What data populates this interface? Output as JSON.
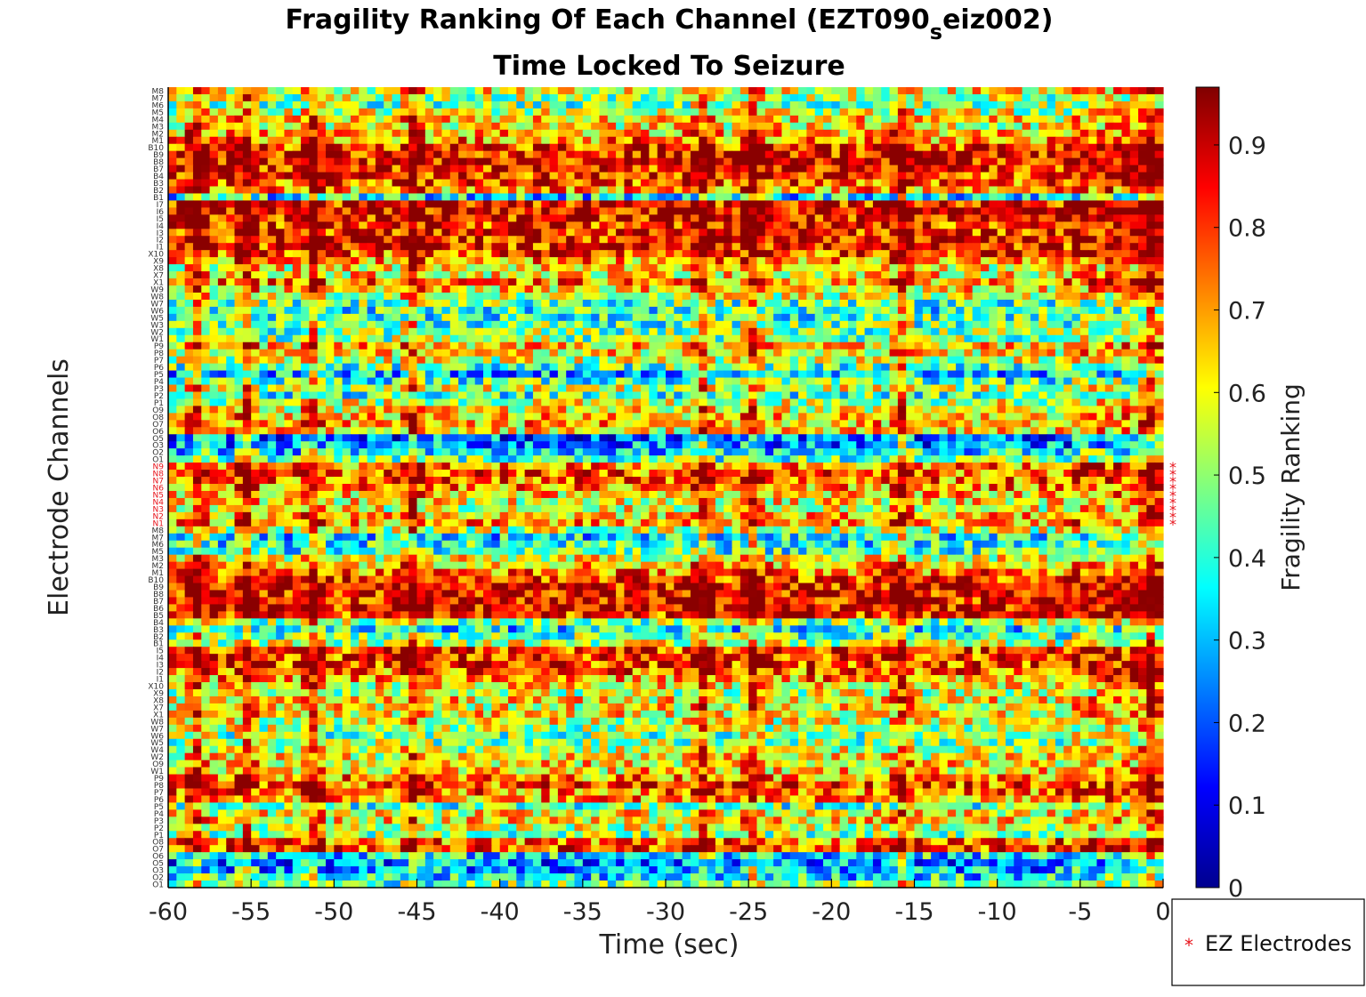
{
  "chart_data": {
    "type": "heatmap",
    "title_main": "Fragility Ranking Of Each Channel (EZT090",
    "title_sub": "s",
    "title_end": "eiz002)",
    "subtitle": "Time Locked To Seizure",
    "xlabel": "Time (sec)",
    "ylabel": "Electrode Channels",
    "colorbar_label": "Fragility Ranking",
    "xlim": [
      -60,
      0
    ],
    "clim": [
      0,
      0.97
    ],
    "colormap": "jet",
    "n_time_bins": 120,
    "x_ticks": [
      {
        "value": -60,
        "label": "-60"
      },
      {
        "value": -55,
        "label": "-55"
      },
      {
        "value": -50,
        "label": "-50"
      },
      {
        "value": -45,
        "label": "-45"
      },
      {
        "value": -40,
        "label": "-40"
      },
      {
        "value": -35,
        "label": "-35"
      },
      {
        "value": -30,
        "label": "-30"
      },
      {
        "value": -25,
        "label": "-25"
      },
      {
        "value": -20,
        "label": "-20"
      },
      {
        "value": -15,
        "label": "-15"
      },
      {
        "value": -10,
        "label": "-10"
      },
      {
        "value": -5,
        "label": "-5"
      },
      {
        "value": 0,
        "label": "0"
      }
    ],
    "colorbar_ticks": [
      {
        "value": 0,
        "label": "0"
      },
      {
        "value": 0.1,
        "label": "0.1"
      },
      {
        "value": 0.2,
        "label": "0.2"
      },
      {
        "value": 0.3,
        "label": "0.3"
      },
      {
        "value": 0.4,
        "label": "0.4"
      },
      {
        "value": 0.5,
        "label": "0.5"
      },
      {
        "value": 0.6,
        "label": "0.6"
      },
      {
        "value": 0.7,
        "label": "0.7"
      },
      {
        "value": 0.8,
        "label": "0.8"
      },
      {
        "value": 0.9,
        "label": "0.9"
      }
    ],
    "channels_top_to_bottom": [
      "M8",
      "M7",
      "M6",
      "M5",
      "M4",
      "M3",
      "M2",
      "M1",
      "B10",
      "B9",
      "B8",
      "B7",
      "B4",
      "B3",
      "B2",
      "B1",
      "I7",
      "I6",
      "I5",
      "I4",
      "I3",
      "I2",
      "I1",
      "X10",
      "X9",
      "X8",
      "X7",
      "X1",
      "W9",
      "W8",
      "W7",
      "W6",
      "W5",
      "W3",
      "W2",
      "W1",
      "P9",
      "P8",
      "P7",
      "P6",
      "P5",
      "P4",
      "P3",
      "P2",
      "P1",
      "O9",
      "O8",
      "O7",
      "O6",
      "O5",
      "O3",
      "O2",
      "O1",
      "N9",
      "N8",
      "N7",
      "N6",
      "N5",
      "N4",
      "N3",
      "N2",
      "N1",
      "M8",
      "M7",
      "M6",
      "M5",
      "M3",
      "M2",
      "M1",
      "B10",
      "B9",
      "B8",
      "B7",
      "B6",
      "B5",
      "B4",
      "B3",
      "B2",
      "B1",
      "I5",
      "I4",
      "I3",
      "I2",
      "I1",
      "X10",
      "X9",
      "X8",
      "X7",
      "X1",
      "W8",
      "W7",
      "W6",
      "W5",
      "W4",
      "W2",
      "O9",
      "W1",
      "P9",
      "P8",
      "P7",
      "P6",
      "P5",
      "P4",
      "P3",
      "P2",
      "P1",
      "O8",
      "O7",
      "O6",
      "O5",
      "O3",
      "O2",
      "O1"
    ],
    "ez_channels": [
      "N9",
      "N8",
      "N7",
      "N6",
      "N5",
      "N4",
      "N3",
      "N2",
      "N1"
    ],
    "ez_marker": "*",
    "ez_color": "#e8141c",
    "channel_profile": [
      0.6,
      0.52,
      0.48,
      0.55,
      0.62,
      0.6,
      0.68,
      0.72,
      0.8,
      0.85,
      0.86,
      0.84,
      0.8,
      0.78,
      0.7,
      0.35,
      0.85,
      0.88,
      0.86,
      0.82,
      0.82,
      0.84,
      0.83,
      0.78,
      0.7,
      0.6,
      0.62,
      0.72,
      0.62,
      0.55,
      0.45,
      0.4,
      0.42,
      0.45,
      0.48,
      0.5,
      0.65,
      0.62,
      0.55,
      0.45,
      0.3,
      0.42,
      0.55,
      0.42,
      0.55,
      0.6,
      0.65,
      0.68,
      0.62,
      0.22,
      0.25,
      0.35,
      0.45,
      0.72,
      0.76,
      0.74,
      0.7,
      0.65,
      0.6,
      0.58,
      0.66,
      0.7,
      0.55,
      0.35,
      0.38,
      0.42,
      0.58,
      0.68,
      0.74,
      0.82,
      0.85,
      0.86,
      0.86,
      0.86,
      0.82,
      0.5,
      0.35,
      0.45,
      0.55,
      0.78,
      0.8,
      0.8,
      0.76,
      0.7,
      0.6,
      0.55,
      0.62,
      0.6,
      0.62,
      0.58,
      0.52,
      0.48,
      0.5,
      0.55,
      0.6,
      0.62,
      0.64,
      0.72,
      0.78,
      0.74,
      0.7,
      0.45,
      0.6,
      0.62,
      0.55,
      0.5,
      0.75,
      0.8,
      0.35,
      0.25,
      0.28,
      0.35,
      0.45
    ],
    "hot_times": [
      -58.5,
      -55.5,
      -51.5,
      -45.5,
      -28,
      -25,
      -16,
      -1
    ],
    "legend": {
      "label": "EZ Electrodes",
      "placement": "outside-bottom-right"
    }
  }
}
